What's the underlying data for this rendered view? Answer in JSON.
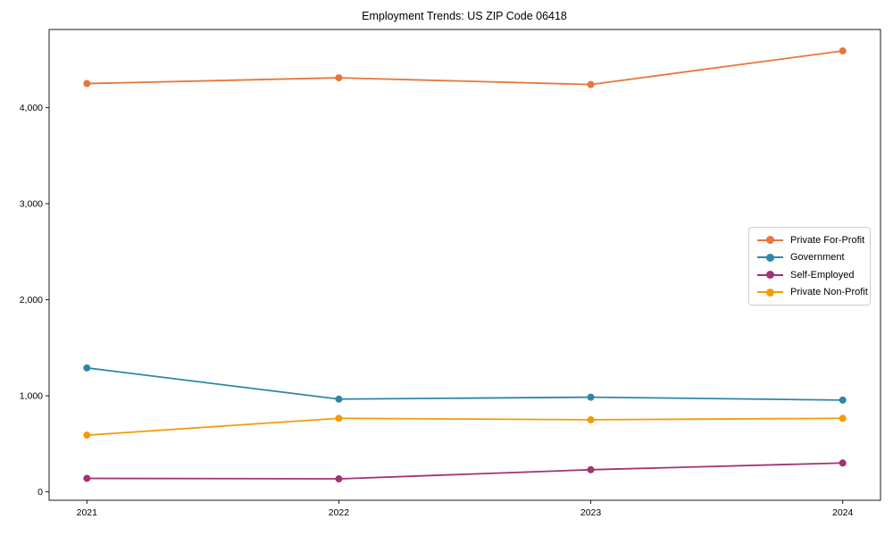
{
  "chart_data": {
    "type": "line",
    "title": "Employment Trends: US ZIP Code 06418",
    "x": [
      2021,
      2022,
      2023,
      2024
    ],
    "xtick_labels": [
      "2021",
      "2022",
      "2023",
      "2024"
    ],
    "yticks": [
      0,
      1000,
      2000,
      3000,
      4000
    ],
    "ytick_labels": [
      "0",
      "1,000",
      "2,000",
      "3,000",
      "4,000"
    ],
    "xlabel": "",
    "ylabel": "",
    "xlim": [
      2020.85,
      2024.15
    ],
    "ylim": [
      -88,
      4813
    ],
    "grid": false,
    "legend_position": "center-right-inside",
    "marker": "circle",
    "series": [
      {
        "name": "Private For-Profit",
        "color": "#E8763C",
        "values": [
          4250,
          4310,
          4240,
          4590
        ]
      },
      {
        "name": "Government",
        "color": "#2E87A5",
        "values": [
          1290,
          965,
          985,
          955
        ]
      },
      {
        "name": "Self-Employed",
        "color": "#A23273",
        "values": [
          140,
          135,
          230,
          300
        ]
      },
      {
        "name": "Private Non-Profit",
        "color": "#F39C0A",
        "values": [
          590,
          765,
          750,
          765
        ]
      }
    ]
  }
}
